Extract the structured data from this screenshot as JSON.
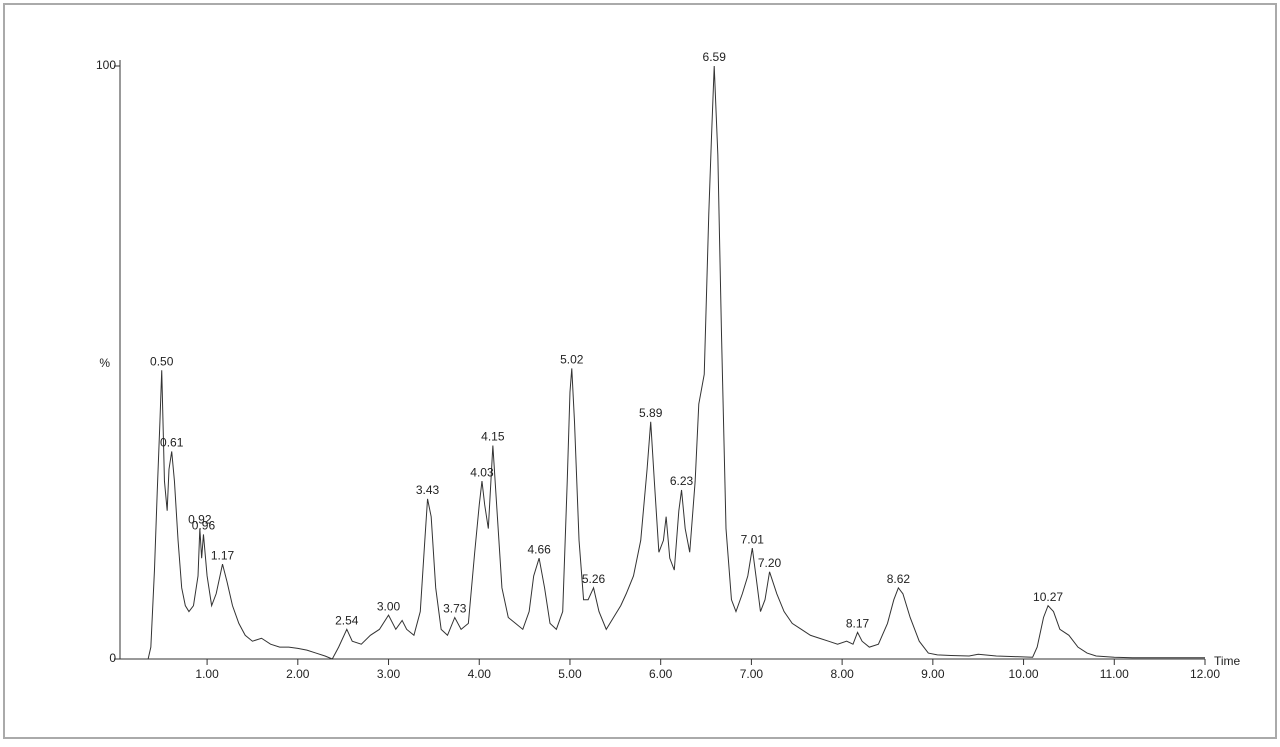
{
  "chart_data": {
    "type": "line",
    "y_label": "%",
    "x_label": "Time",
    "xlim": [
      0.04,
      12.0
    ],
    "ylim": [
      0,
      100
    ],
    "xticks": [
      {
        "value": 1,
        "label": "1.00"
      },
      {
        "value": 2,
        "label": "2.00"
      },
      {
        "value": 3,
        "label": "3.00"
      },
      {
        "value": 4,
        "label": "4.00"
      },
      {
        "value": 5,
        "label": "5.00"
      },
      {
        "value": 6,
        "label": "6.00"
      },
      {
        "value": 7,
        "label": "7.00"
      },
      {
        "value": 8,
        "label": "8.00"
      },
      {
        "value": 9,
        "label": "9.00"
      },
      {
        "value": 10,
        "label": "10.00"
      },
      {
        "value": 11,
        "label": "11.00"
      },
      {
        "value": 12,
        "label": "12.00"
      }
    ],
    "yticks": [
      0,
      100
    ],
    "x": [
      0.05,
      0.35,
      0.38,
      0.42,
      0.45,
      0.48,
      0.5,
      0.53,
      0.56,
      0.58,
      0.61,
      0.64,
      0.68,
      0.72,
      0.76,
      0.8,
      0.85,
      0.9,
      0.92,
      0.94,
      0.96,
      1.0,
      1.05,
      1.1,
      1.17,
      1.22,
      1.28,
      1.35,
      1.42,
      1.5,
      1.6,
      1.7,
      1.8,
      1.9,
      2.0,
      2.1,
      2.2,
      2.3,
      2.38,
      2.45,
      2.54,
      2.6,
      2.7,
      2.8,
      2.9,
      3.0,
      3.08,
      3.15,
      3.2,
      3.28,
      3.35,
      3.4,
      3.43,
      3.47,
      3.52,
      3.58,
      3.65,
      3.73,
      3.8,
      3.88,
      3.95,
      4.0,
      4.03,
      4.06,
      4.1,
      4.15,
      4.2,
      4.25,
      4.32,
      4.4,
      4.48,
      4.55,
      4.6,
      4.66,
      4.72,
      4.78,
      4.85,
      4.92,
      4.97,
      5.0,
      5.02,
      5.05,
      5.1,
      5.15,
      5.2,
      5.26,
      5.32,
      5.4,
      5.48,
      5.56,
      5.62,
      5.7,
      5.78,
      5.85,
      5.89,
      5.93,
      5.98,
      6.03,
      6.06,
      6.1,
      6.15,
      6.2,
      6.23,
      6.27,
      6.32,
      6.38,
      6.42,
      6.48,
      6.53,
      6.56,
      6.59,
      6.63,
      6.67,
      6.72,
      6.78,
      6.83,
      6.9,
      6.96,
      7.01,
      7.05,
      7.1,
      7.15,
      7.2,
      7.28,
      7.36,
      7.45,
      7.55,
      7.65,
      7.75,
      7.85,
      7.95,
      8.05,
      8.12,
      8.17,
      8.22,
      8.3,
      8.4,
      8.5,
      8.57,
      8.62,
      8.67,
      8.75,
      8.85,
      8.95,
      9.05,
      9.2,
      9.4,
      9.5,
      9.7,
      9.9,
      10.1,
      10.15,
      10.22,
      10.27,
      10.33,
      10.4,
      10.5,
      10.6,
      10.7,
      10.8,
      11.0,
      11.2,
      11.5,
      12.0
    ],
    "series": [
      {
        "color": "#333333",
        "values": [
          0,
          0,
          2,
          15,
          28,
          40,
          48.7,
          30,
          25,
          32,
          35,
          30,
          20,
          12,
          9,
          8,
          9,
          14,
          22,
          17,
          21,
          14,
          9,
          11,
          16,
          13,
          9,
          6,
          4,
          3,
          3.5,
          2.5,
          2,
          2,
          1.8,
          1.5,
          1,
          0.5,
          0,
          2,
          5,
          3,
          2.5,
          4,
          5,
          7.4,
          5,
          6.5,
          5,
          4,
          8,
          20,
          27,
          24,
          12,
          5,
          4,
          7,
          5,
          6,
          18,
          26,
          30,
          26,
          22,
          36,
          24,
          12,
          7,
          6,
          5,
          8,
          14,
          17,
          12,
          6,
          5,
          8,
          30,
          45,
          49,
          40,
          20,
          10,
          10,
          12,
          8,
          5,
          7,
          9,
          11,
          14,
          20,
          32,
          40,
          30,
          18,
          20,
          24,
          17,
          15,
          25,
          28.5,
          22,
          18,
          30,
          43,
          48,
          75,
          88,
          100,
          85,
          55,
          22,
          10,
          8,
          11,
          14,
          18.7,
          14,
          8,
          10,
          14.7,
          11,
          8,
          6,
          5,
          4,
          3.5,
          3,
          2.5,
          3,
          2.5,
          4.5,
          3,
          2,
          2.5,
          6,
          10,
          12,
          11,
          7,
          3,
          1,
          0.7,
          0.6,
          0.5,
          0.8,
          0.5,
          0.4,
          0.3,
          2,
          7,
          9,
          8,
          5,
          4,
          2,
          1,
          0.5,
          0.3,
          0.2,
          0.2,
          0.2
        ]
      }
    ],
    "peaks": [
      {
        "x": {
          "value": 0.5,
          "label": "0.50"
        },
        "y": 48.7
      },
      {
        "x": {
          "value": 0.61,
          "label": "0.61"
        },
        "y": 35
      },
      {
        "x": {
          "value": 0.92,
          "label": "0.92"
        },
        "y": 22
      },
      {
        "x": {
          "value": 0.96,
          "label": "0.96"
        },
        "y": 21
      },
      {
        "x": {
          "value": 1.17,
          "label": "1.17"
        },
        "y": 16
      },
      {
        "x": {
          "value": 2.54,
          "label": "2.54"
        },
        "y": 5
      },
      {
        "x": {
          "value": 3,
          "label": "3.00"
        },
        "y": 7.4
      },
      {
        "x": {
          "value": 3.43,
          "label": "3.43"
        },
        "y": 27
      },
      {
        "x": {
          "value": 3.73,
          "label": "3.73"
        },
        "y": 7
      },
      {
        "x": {
          "value": 4.03,
          "label": "4.03"
        },
        "y": 30
      },
      {
        "x": {
          "value": 4.15,
          "label": "4.15"
        },
        "y": 36
      },
      {
        "x": {
          "value": 4.66,
          "label": "4.66"
        },
        "y": 17
      },
      {
        "x": {
          "value": 5.02,
          "label": "5.02"
        },
        "y": 49
      },
      {
        "x": {
          "value": 5.26,
          "label": "5.26"
        },
        "y": 12
      },
      {
        "x": {
          "value": 5.89,
          "label": "5.89"
        },
        "y": 40
      },
      {
        "x": {
          "value": 6.23,
          "label": "6.23"
        },
        "y": 28.5
      },
      {
        "x": {
          "value": 6.59,
          "label": "6.59"
        },
        "y": 100
      },
      {
        "x": {
          "value": 7.01,
          "label": "7.01"
        },
        "y": 18.7
      },
      {
        "x": {
          "value": 7.2,
          "label": "7.20"
        },
        "y": 14.7
      },
      {
        "x": {
          "value": 8.17,
          "label": "8.17"
        },
        "y": 4.5
      },
      {
        "x": {
          "value": 8.62,
          "label": "8.62"
        },
        "y": 12
      },
      {
        "x": {
          "value": 10.27,
          "label": "10.27"
        },
        "y": 9
      }
    ]
  }
}
